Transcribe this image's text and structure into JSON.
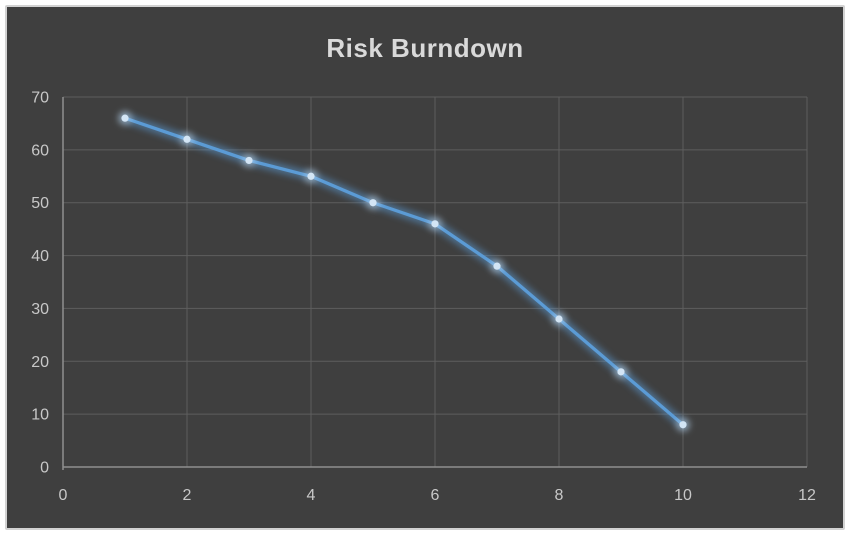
{
  "chart_data": {
    "type": "line",
    "title": "Risk Burndown",
    "x": [
      1,
      2,
      3,
      4,
      5,
      6,
      7,
      8,
      9,
      10
    ],
    "values": [
      66,
      62,
      58,
      55,
      50,
      46,
      38,
      28,
      18,
      8
    ],
    "series": [
      {
        "name": "Risk Burndown",
        "values": [
          66,
          62,
          58,
          55,
          50,
          46,
          38,
          28,
          18,
          8
        ]
      }
    ],
    "xlabel": "",
    "ylabel": "",
    "xlim": [
      0,
      12
    ],
    "ylim": [
      0,
      70
    ],
    "xticks": [
      0,
      2,
      4,
      6,
      8,
      10,
      12
    ],
    "yticks": [
      0,
      10,
      20,
      30,
      40,
      50,
      60,
      70
    ],
    "grid": true,
    "legend_position": "none",
    "marker_shape": "circle",
    "line_glow": true,
    "colors": {
      "series_line": "#5b9bd5",
      "marker_fill": "#d3e5f5",
      "plot_background": "#3f3f3f",
      "gridline": "#5e5e5e",
      "axis_line": "#8f8f8f",
      "tick_label": "#c8c8c8",
      "title_text": "#d9d9d9",
      "frame_border": "#d2d2d2",
      "page_background": "#ffffff"
    }
  }
}
